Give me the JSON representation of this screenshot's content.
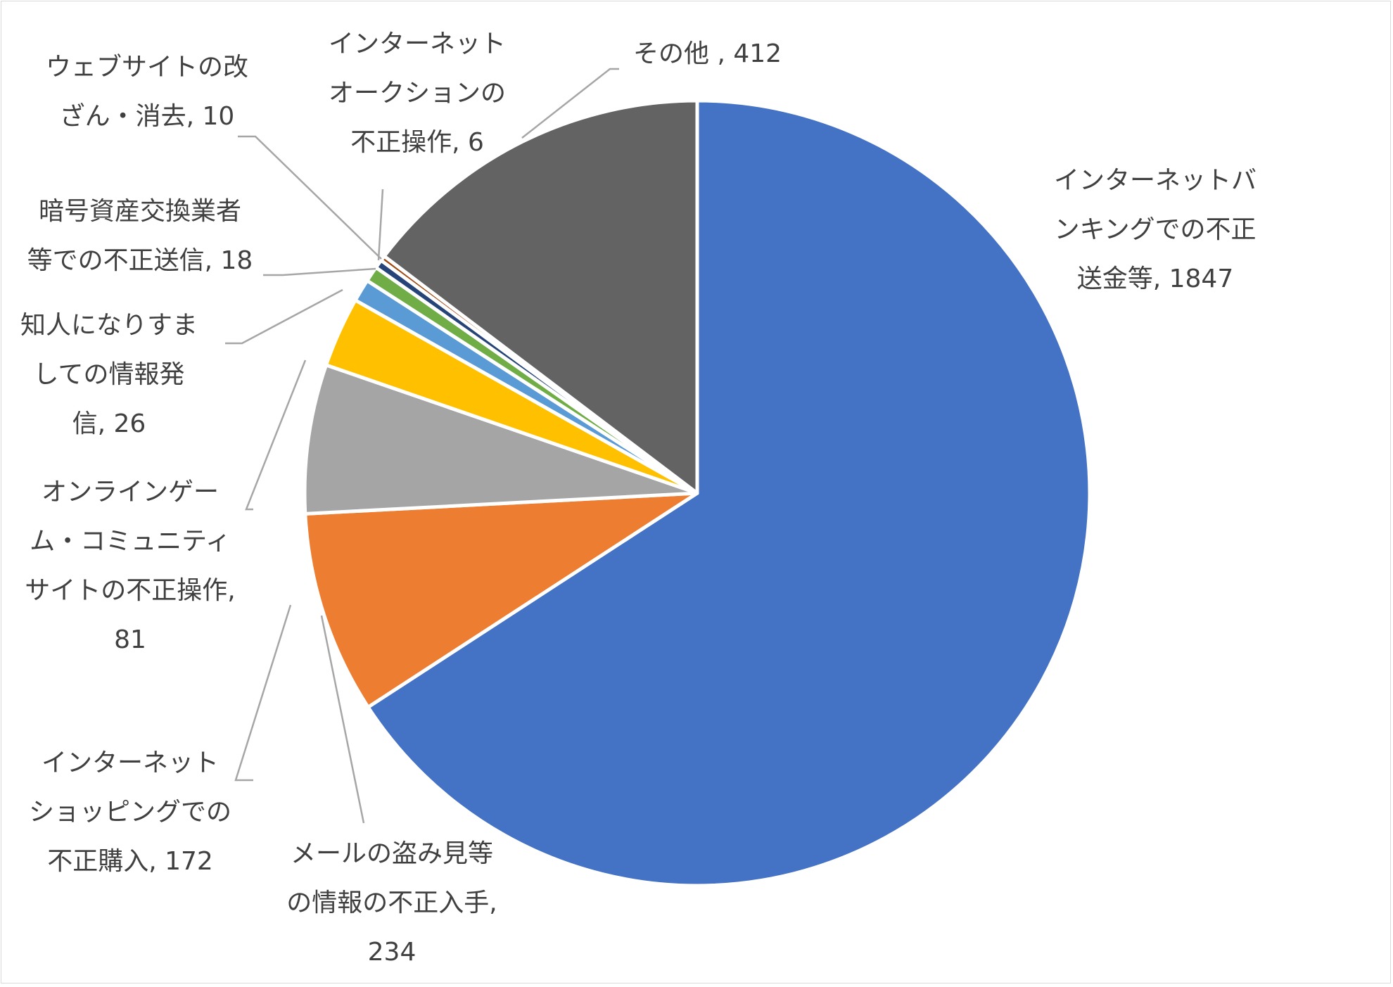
{
  "chart_data": {
    "type": "pie",
    "title": "",
    "legend": "none",
    "categories": [
      "インターネットバンキングでの不正送金等",
      "メールの盗み見等の情報の不正入手",
      "インターネットショッピングでの不正購入",
      "オンラインゲーム・コミュニティサイトの不正操作",
      "知人になりすましての情報発信",
      "暗号資産交換業者等での不正送信",
      "ウェブサイトの改ざん・消去",
      "インターネットオークションの不正操作",
      "その他"
    ],
    "values": [
      1847,
      234,
      172,
      81,
      26,
      18,
      10,
      6,
      412
    ],
    "colors": [
      "#4472C4",
      "#ED7D31",
      "#A5A5A5",
      "#FFC000",
      "#5B9BD5",
      "#70AD47",
      "#264478",
      "#9E480E",
      "#636363"
    ],
    "labels": [
      [
        "インターネットバ",
        "ンキングでの不正",
        "送金等, 1847"
      ],
      [
        "メールの盗み見等",
        "の情報の不正入手,",
        "234"
      ],
      [
        "インターネット",
        "ショッピングでの",
        "不正購入, 172"
      ],
      [
        "オンラインゲー",
        "ム・コミュニティ",
        "サイトの不正操作,",
        "81"
      ],
      [
        "知人になりすま",
        "しての情報発",
        "信, 26"
      ],
      [
        "暗号資産交換業者",
        "等での不正送信, 18"
      ],
      [
        "ウェブサイトの改",
        "ざん・消去, 10"
      ],
      [
        "インターネット",
        "オークションの",
        "不正操作, 6"
      ],
      [
        "その他 , 412"
      ]
    ]
  }
}
